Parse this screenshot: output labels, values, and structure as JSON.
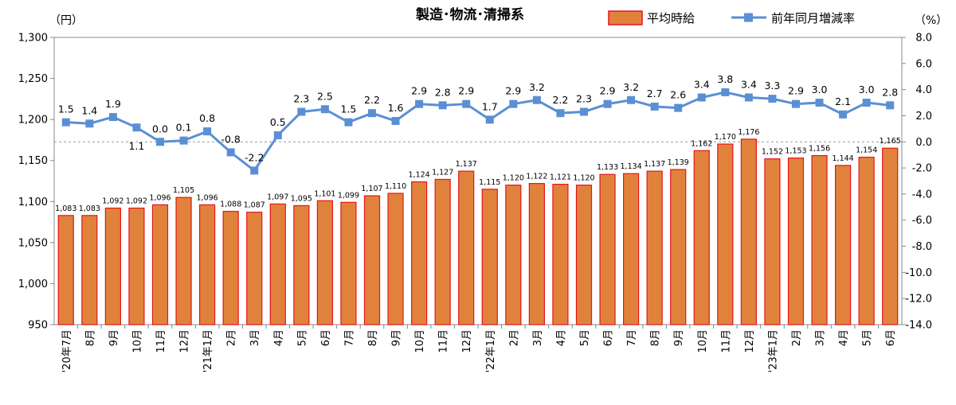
{
  "chart_data": {
    "type": "bar+line",
    "title": "製造･物流･清掃系",
    "left_unit": "（円）",
    "right_unit": "（%）",
    "categories": [
      "'20年7月",
      "8月",
      "9月",
      "10月",
      "11月",
      "12月",
      "'21年1月",
      "2月",
      "3月",
      "4月",
      "5月",
      "6月",
      "7月",
      "8月",
      "9月",
      "10月",
      "11月",
      "12月",
      "'22年1月",
      "2月",
      "3月",
      "4月",
      "5月",
      "6月",
      "7月",
      "8月",
      "9月",
      "10月",
      "11月",
      "12月",
      "'23年1月",
      "2月",
      "3月",
      "4月",
      "5月",
      "6月"
    ],
    "series": [
      {
        "name": "平均時給",
        "type": "bar",
        "axis": "left",
        "color": "#E0823C",
        "border_color": "#E8141A",
        "values": [
          1083,
          1083,
          1092,
          1092,
          1096,
          1105,
          1096,
          1088,
          1087,
          1097,
          1095,
          1101,
          1099,
          1107,
          1110,
          1124,
          1127,
          1137,
          1115,
          1120,
          1122,
          1121,
          1120,
          1133,
          1134,
          1137,
          1139,
          1162,
          1170,
          1176,
          1152,
          1153,
          1156,
          1144,
          1154,
          1165
        ],
        "labels": [
          "1,083",
          "1,083",
          "1,092",
          "1,092",
          "1,096",
          "1,105",
          "1,096",
          "1,088",
          "1,087",
          "1,097",
          "1,095",
          "1,101",
          "1,099",
          "1,107",
          "1,110",
          "1,124",
          "1,127",
          "1,137",
          "1,115",
          "1,120",
          "1,122",
          "1,121",
          "1,120",
          "1,133",
          "1,134",
          "1,137",
          "1,139",
          "1,162",
          "1,170",
          "1,176",
          "1,152",
          "1,153",
          "1,156",
          "1,144",
          "1,154",
          "1,165"
        ]
      },
      {
        "name": "前年同月増減率",
        "type": "line",
        "axis": "right",
        "color": "#5B8FD4",
        "values": [
          1.5,
          1.4,
          1.9,
          1.1,
          0.0,
          0.1,
          0.8,
          -0.8,
          -2.2,
          0.5,
          2.3,
          2.5,
          1.5,
          2.2,
          1.6,
          2.9,
          2.8,
          2.9,
          1.7,
          2.9,
          3.2,
          2.2,
          2.3,
          2.9,
          3.2,
          2.7,
          2.6,
          3.4,
          3.8,
          3.4,
          3.3,
          2.9,
          3.0,
          2.1,
          3.0,
          2.8
        ],
        "labels": [
          "1.5",
          "1.4",
          "1.9",
          "1.1",
          "0.0",
          "0.1",
          "0.8",
          "-0.8",
          "-2.2",
          "0.5",
          "2.3",
          "2.5",
          "1.5",
          "2.2",
          "1.6",
          "2.9",
          "2.8",
          "2.9",
          "1.7",
          "2.9",
          "3.2",
          "2.2",
          "2.3",
          "2.9",
          "3.2",
          "2.7",
          "2.6",
          "3.4",
          "3.8",
          "3.4",
          "3.3",
          "2.9",
          "3.0",
          "2.1",
          "3.0",
          "2.8"
        ],
        "label_below": [
          3
        ]
      }
    ],
    "left_axis": {
      "min": 950,
      "max": 1300,
      "step": 50,
      "tick_labels": [
        "950",
        "1,000",
        "1,050",
        "1,100",
        "1,150",
        "1,200",
        "1,250",
        "1,300"
      ]
    },
    "right_axis": {
      "min": -14,
      "max": 8,
      "step": 2,
      "tick_labels": [
        "-14.0",
        "-12.0",
        "-10.0",
        "-8.0",
        "-6.0",
        "-4.0",
        "-2.0",
        "0.0",
        "2.0",
        "4.0",
        "6.0",
        "8.0"
      ]
    },
    "reference_line": {
      "axis": "right",
      "value": 0.0,
      "style": "dashed"
    },
    "grid": false,
    "legend_position": "top-right"
  }
}
